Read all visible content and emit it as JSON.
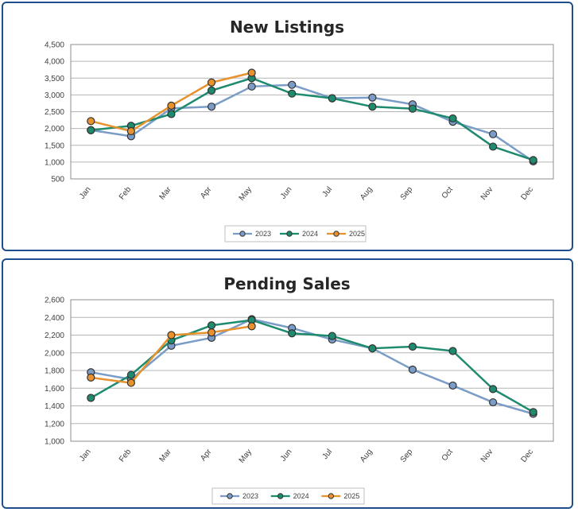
{
  "chart_data": [
    {
      "type": "line",
      "title": "New Listings",
      "categories": [
        "Jan",
        "Feb",
        "Mar",
        "Apr",
        "May",
        "Jun",
        "Jul",
        "Aug",
        "Sep",
        "Oct",
        "Nov",
        "Dec"
      ],
      "ylim": [
        500,
        4500
      ],
      "yticks": [
        "500",
        "1,000",
        "1,500",
        "2,000",
        "2,500",
        "3,000",
        "3,500",
        "4,000",
        "4,500"
      ],
      "grid": true,
      "legend": "bottom",
      "series": [
        {
          "name": "2023",
          "color": "#7a9cc6",
          "values": [
            1950,
            1770,
            2600,
            2650,
            3250,
            3300,
            2900,
            2920,
            2720,
            2200,
            1830,
            1020
          ]
        },
        {
          "name": "2024",
          "color": "#1e8a6e",
          "values": [
            1950,
            2080,
            2430,
            3130,
            3500,
            3040,
            2900,
            2650,
            2590,
            2300,
            1460,
            1060
          ]
        },
        {
          "name": "2025",
          "color": "#e8922e",
          "values": [
            2220,
            1920,
            2680,
            3370,
            3660,
            null,
            null,
            null,
            null,
            null,
            null,
            null
          ]
        }
      ]
    },
    {
      "type": "line",
      "title": "Pending Sales",
      "categories": [
        "Jan",
        "Feb",
        "Mar",
        "Apr",
        "May",
        "Jun",
        "Jul",
        "Aug",
        "Sep",
        "Oct",
        "Nov",
        "Dec"
      ],
      "ylim": [
        1000,
        2600
      ],
      "yticks": [
        "1,000",
        "1,200",
        "1,400",
        "1,600",
        "1,800",
        "2,000",
        "2,200",
        "2,400",
        "2,600"
      ],
      "grid": true,
      "legend": "bottom",
      "series": [
        {
          "name": "2023",
          "color": "#7a9cc6",
          "values": [
            1780,
            1700,
            2080,
            2170,
            2380,
            2280,
            2150,
            2050,
            1810,
            1630,
            1440,
            1310
          ]
        },
        {
          "name": "2024",
          "color": "#1e8a6e",
          "values": [
            1490,
            1750,
            2140,
            2310,
            2370,
            2220,
            2190,
            2050,
            2070,
            2020,
            1590,
            1330
          ]
        },
        {
          "name": "2025",
          "color": "#e8922e",
          "values": [
            1720,
            1660,
            2200,
            2230,
            2300,
            null,
            null,
            null,
            null,
            null,
            null,
            null
          ]
        }
      ]
    }
  ]
}
